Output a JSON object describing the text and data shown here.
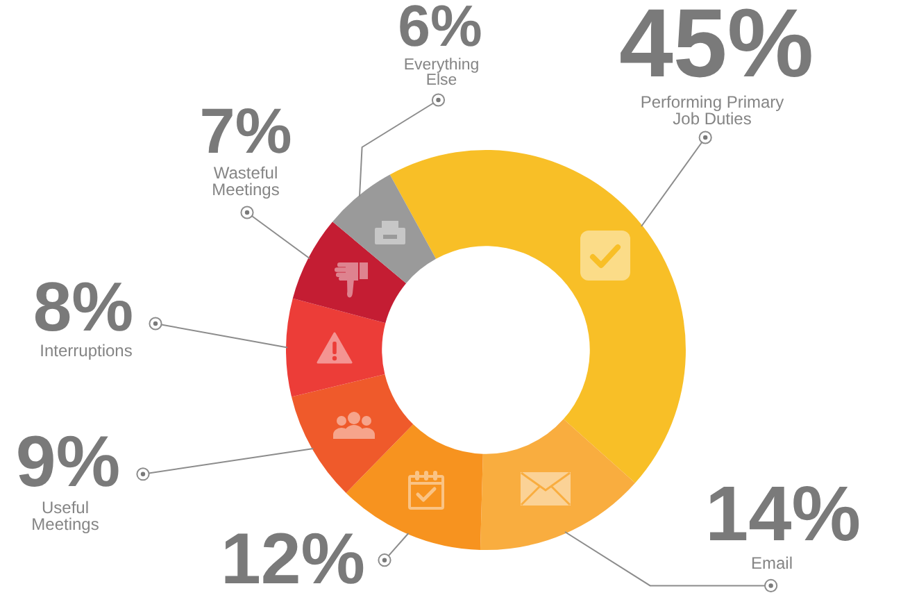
{
  "chart_data": {
    "type": "donut",
    "categories": [
      "Performing Primary Job Duties",
      "Email",
      null,
      "Useful Meetings",
      "Interruptions",
      "Wasteful Meetings",
      "Everything Else"
    ],
    "values": [
      45,
      14,
      12,
      9,
      8,
      7,
      6
    ],
    "value_labels": [
      "45%",
      "14%",
      "12%",
      "9%",
      "8%",
      "7%",
      "6%"
    ],
    "colors": [
      "#f8bf27",
      "#f9ad3f",
      "#f7931f",
      "#ef5a2b",
      "#ec3d38",
      "#c41d33",
      "#9a9a9a"
    ]
  }
}
